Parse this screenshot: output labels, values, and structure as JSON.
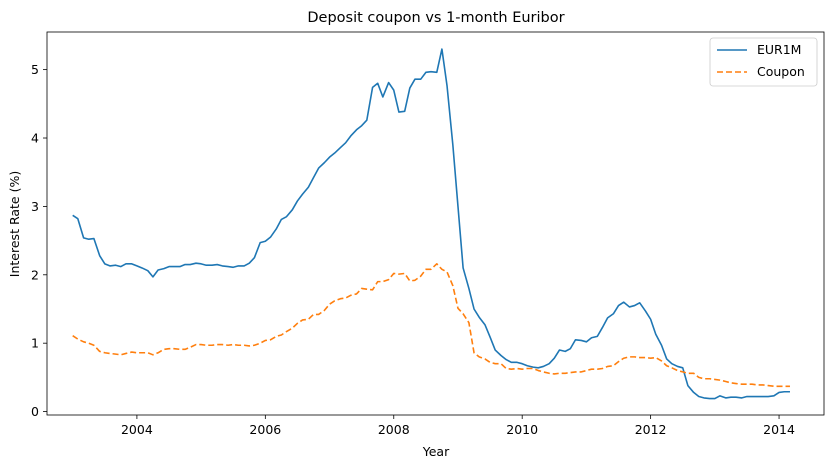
{
  "chart_data": {
    "type": "line",
    "title": "Deposit coupon vs 1-month Euribor",
    "xlabel": "Year",
    "ylabel": "Interest Rate (%)",
    "xlim": [
      2002.6,
      2014.7
    ],
    "ylim": [
      -0.05,
      5.55
    ],
    "x_ticks": [
      2004,
      2006,
      2008,
      2010,
      2012,
      2014
    ],
    "y_ticks": [
      0,
      1,
      2,
      3,
      4,
      5
    ],
    "grid": false,
    "legend_position": "top-right",
    "series": [
      {
        "name": "EUR1M",
        "color": "#1f77b4",
        "style": "solid",
        "x": [
          2003.0,
          2003.08,
          2003.17,
          2003.25,
          2003.33,
          2003.42,
          2003.5,
          2003.58,
          2003.67,
          2003.75,
          2003.83,
          2003.92,
          2004.0,
          2004.08,
          2004.17,
          2004.25,
          2004.33,
          2004.42,
          2004.5,
          2004.58,
          2004.67,
          2004.75,
          2004.83,
          2004.92,
          2005.0,
          2005.08,
          2005.17,
          2005.25,
          2005.33,
          2005.42,
          2005.5,
          2005.58,
          2005.67,
          2005.75,
          2005.83,
          2005.92,
          2006.0,
          2006.08,
          2006.17,
          2006.25,
          2006.33,
          2006.42,
          2006.5,
          2006.58,
          2006.67,
          2006.75,
          2006.83,
          2006.92,
          2007.0,
          2007.08,
          2007.17,
          2007.25,
          2007.33,
          2007.42,
          2007.5,
          2007.58,
          2007.67,
          2007.75,
          2007.83,
          2007.92,
          2008.0,
          2008.08,
          2008.17,
          2008.25,
          2008.33,
          2008.42,
          2008.5,
          2008.58,
          2008.67,
          2008.75,
          2008.83,
          2008.92,
          2009.0,
          2009.08,
          2009.17,
          2009.25,
          2009.33,
          2009.42,
          2009.5,
          2009.58,
          2009.67,
          2009.75,
          2009.83,
          2009.92,
          2010.0,
          2010.08,
          2010.17,
          2010.25,
          2010.33,
          2010.42,
          2010.5,
          2010.58,
          2010.67,
          2010.75,
          2010.83,
          2010.92,
          2011.0,
          2011.08,
          2011.17,
          2011.25,
          2011.33,
          2011.42,
          2011.5,
          2011.58,
          2011.67,
          2011.75,
          2011.83,
          2011.92,
          2012.0,
          2012.08,
          2012.17,
          2012.25,
          2012.33,
          2012.42,
          2012.5,
          2012.58,
          2012.67,
          2012.75,
          2012.83,
          2012.92,
          2013.0,
          2013.08,
          2013.17,
          2013.25,
          2013.33,
          2013.42,
          2013.5,
          2013.58,
          2013.67,
          2013.75,
          2013.83,
          2013.92,
          2014.0,
          2014.08,
          2014.17
        ],
        "y": [
          2.87,
          2.82,
          2.54,
          2.52,
          2.53,
          2.28,
          2.16,
          2.13,
          2.14,
          2.12,
          2.16,
          2.16,
          2.13,
          2.1,
          2.06,
          1.97,
          2.07,
          2.09,
          2.12,
          2.12,
          2.12,
          2.15,
          2.15,
          2.17,
          2.16,
          2.14,
          2.14,
          2.15,
          2.13,
          2.12,
          2.11,
          2.13,
          2.13,
          2.17,
          2.25,
          2.47,
          2.49,
          2.55,
          2.67,
          2.81,
          2.85,
          2.95,
          3.08,
          3.18,
          3.28,
          3.42,
          3.56,
          3.64,
          3.72,
          3.78,
          3.86,
          3.93,
          4.03,
          4.12,
          4.18,
          4.26,
          4.74,
          4.8,
          4.6,
          4.81,
          4.7,
          4.38,
          4.39,
          4.73,
          4.86,
          4.86,
          4.96,
          4.97,
          4.96,
          5.3,
          4.76,
          3.9,
          3.0,
          2.1,
          1.8,
          1.5,
          1.38,
          1.27,
          1.09,
          0.9,
          0.82,
          0.76,
          0.72,
          0.72,
          0.7,
          0.67,
          0.65,
          0.64,
          0.66,
          0.7,
          0.78,
          0.9,
          0.88,
          0.92,
          1.05,
          1.04,
          1.02,
          1.08,
          1.1,
          1.23,
          1.37,
          1.43,
          1.55,
          1.6,
          1.53,
          1.55,
          1.59,
          1.47,
          1.35,
          1.13,
          0.97,
          0.77,
          0.7,
          0.66,
          0.64,
          0.38,
          0.28,
          0.22,
          0.2,
          0.19,
          0.19,
          0.23,
          0.2,
          0.21,
          0.21,
          0.2,
          0.22,
          0.22,
          0.22,
          0.22,
          0.22,
          0.23,
          0.28,
          0.29,
          0.29
        ]
      },
      {
        "name": "Coupon",
        "color": "#ff7f0e",
        "style": "dashed",
        "x": [
          2003.0,
          2003.08,
          2003.17,
          2003.25,
          2003.33,
          2003.42,
          2003.5,
          2003.58,
          2003.67,
          2003.75,
          2003.83,
          2003.92,
          2004.0,
          2004.08,
          2004.17,
          2004.25,
          2004.33,
          2004.42,
          2004.5,
          2004.58,
          2004.67,
          2004.75,
          2004.83,
          2004.92,
          2005.0,
          2005.08,
          2005.17,
          2005.25,
          2005.33,
          2005.42,
          2005.5,
          2005.58,
          2005.67,
          2005.75,
          2005.83,
          2005.92,
          2006.0,
          2006.08,
          2006.17,
          2006.25,
          2006.33,
          2006.42,
          2006.5,
          2006.58,
          2006.67,
          2006.75,
          2006.83,
          2006.92,
          2007.0,
          2007.08,
          2007.17,
          2007.25,
          2007.33,
          2007.42,
          2007.5,
          2007.58,
          2007.67,
          2007.75,
          2007.83,
          2007.92,
          2008.0,
          2008.08,
          2008.17,
          2008.25,
          2008.33,
          2008.42,
          2008.5,
          2008.58,
          2008.67,
          2008.75,
          2008.83,
          2008.92,
          2009.0,
          2009.08,
          2009.17,
          2009.25,
          2009.33,
          2009.42,
          2009.5,
          2009.58,
          2009.67,
          2009.75,
          2009.83,
          2009.92,
          2010.0,
          2010.08,
          2010.17,
          2010.25,
          2010.33,
          2010.42,
          2010.5,
          2010.58,
          2010.67,
          2010.75,
          2010.83,
          2010.92,
          2011.0,
          2011.08,
          2011.17,
          2011.25,
          2011.33,
          2011.42,
          2011.5,
          2011.58,
          2011.67,
          2011.75,
          2011.83,
          2011.92,
          2012.0,
          2012.08,
          2012.17,
          2012.25,
          2012.33,
          2012.42,
          2012.5,
          2012.58,
          2012.67,
          2012.75,
          2012.83,
          2012.92,
          2013.0,
          2013.08,
          2013.17,
          2013.25,
          2013.33,
          2013.42,
          2013.5,
          2013.58,
          2013.67,
          2013.75,
          2013.83,
          2013.92,
          2014.0,
          2014.08,
          2014.17
        ],
        "y": [
          1.11,
          1.06,
          1.02,
          1.0,
          0.97,
          0.88,
          0.86,
          0.85,
          0.84,
          0.83,
          0.85,
          0.87,
          0.86,
          0.86,
          0.86,
          0.83,
          0.86,
          0.91,
          0.92,
          0.92,
          0.91,
          0.91,
          0.94,
          0.98,
          0.98,
          0.97,
          0.97,
          0.98,
          0.98,
          0.97,
          0.98,
          0.97,
          0.97,
          0.96,
          0.97,
          1.0,
          1.04,
          1.05,
          1.1,
          1.12,
          1.17,
          1.22,
          1.29,
          1.34,
          1.35,
          1.42,
          1.42,
          1.48,
          1.57,
          1.62,
          1.65,
          1.66,
          1.7,
          1.72,
          1.8,
          1.79,
          1.78,
          1.9,
          1.9,
          1.93,
          2.02,
          2.01,
          2.02,
          1.91,
          1.92,
          1.98,
          2.08,
          2.08,
          2.16,
          2.08,
          2.04,
          1.84,
          1.51,
          1.43,
          1.3,
          0.86,
          0.8,
          0.77,
          0.72,
          0.7,
          0.7,
          0.63,
          0.62,
          0.63,
          0.62,
          0.63,
          0.63,
          0.6,
          0.58,
          0.56,
          0.55,
          0.56,
          0.56,
          0.57,
          0.58,
          0.58,
          0.6,
          0.62,
          0.62,
          0.63,
          0.66,
          0.67,
          0.73,
          0.78,
          0.8,
          0.8,
          0.79,
          0.79,
          0.78,
          0.79,
          0.74,
          0.67,
          0.64,
          0.6,
          0.58,
          0.56,
          0.56,
          0.5,
          0.48,
          0.48,
          0.47,
          0.46,
          0.44,
          0.42,
          0.41,
          0.4,
          0.4,
          0.4,
          0.39,
          0.39,
          0.38,
          0.37,
          0.37,
          0.37,
          0.37
        ]
      }
    ]
  }
}
